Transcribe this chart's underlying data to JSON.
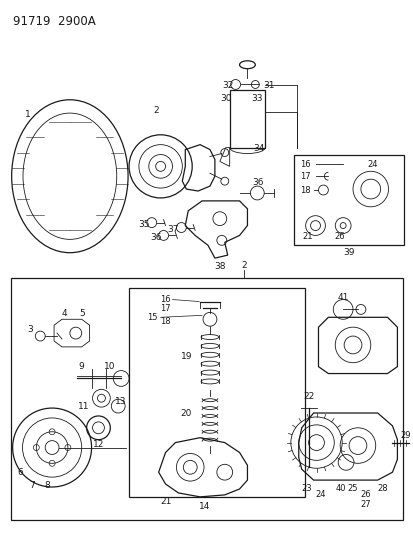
{
  "title": "91719  2900A",
  "bg_color": "#ffffff",
  "line_color": "#1a1a1a",
  "fig_width": 4.14,
  "fig_height": 5.33,
  "dpi": 100
}
